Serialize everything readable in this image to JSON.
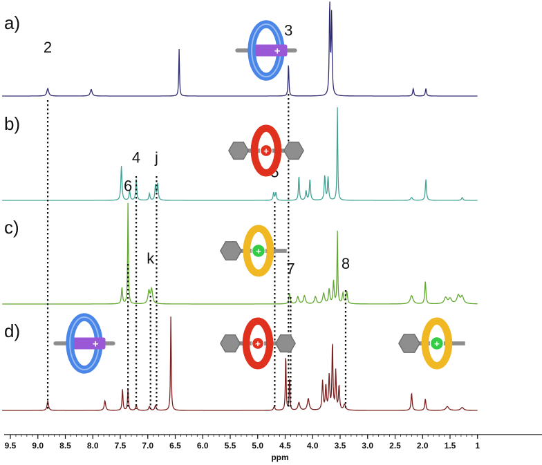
{
  "chart_data": {
    "type": "line",
    "xlabel": "ppm",
    "xlim": [
      9.65,
      1.0
    ],
    "x_ticks": [
      "9.5",
      "9.0",
      "8.5",
      "8.0",
      "7.5",
      "7.0",
      "6.5",
      "6.0",
      "5.5",
      "5.0",
      "4.5",
      "4.0",
      "3.5",
      "3.0",
      "2.5",
      "2.0",
      "1.5",
      "1"
    ],
    "grid": false,
    "legend": "none",
    "series": [
      {
        "panel_label": "a)",
        "color": "#2e2a72",
        "peaks": [
          {
            "ppm": 8.82,
            "height": 0.08,
            "width": 0.02
          },
          {
            "ppm": 8.03,
            "height": 0.07,
            "width": 0.02
          },
          {
            "ppm": 6.43,
            "height": 0.5,
            "width": 0.008
          },
          {
            "ppm": 4.44,
            "height": 0.35,
            "width": 0.009
          },
          {
            "ppm": 3.69,
            "height": 0.98,
            "width": 0.01
          },
          {
            "ppm": 3.655,
            "height": 0.85,
            "width": 0.01
          },
          {
            "ppm": 2.17,
            "height": 0.08,
            "width": 0.012
          },
          {
            "ppm": 1.94,
            "height": 0.08,
            "width": 0.012
          }
        ],
        "annotations": [
          {
            "label": "2",
            "ppm": 8.82,
            "height": 0.42
          },
          {
            "label": "3",
            "ppm": 4.44,
            "height": 0.6
          }
        ]
      },
      {
        "panel_label": "b)",
        "color": "#3fa394",
        "peaks": [
          {
            "ppm": 7.48,
            "height": 0.36,
            "width": 0.012
          },
          {
            "ppm": 7.33,
            "height": 0.1,
            "width": 0.012
          },
          {
            "ppm": 7.21,
            "height": 0.22,
            "width": 0.012
          },
          {
            "ppm": 6.97,
            "height": 0.07,
            "width": 0.012
          },
          {
            "ppm": 6.86,
            "height": 0.16,
            "width": 0.012
          },
          {
            "ppm": 6.82,
            "height": 0.17,
            "width": 0.012
          },
          {
            "ppm": 4.71,
            "height": 0.08,
            "width": 0.012
          },
          {
            "ppm": 4.67,
            "height": 0.08,
            "width": 0.012
          },
          {
            "ppm": 4.25,
            "height": 0.26,
            "width": 0.01
          },
          {
            "ppm": 4.12,
            "height": 0.1,
            "width": 0.012
          },
          {
            "ppm": 4.05,
            "height": 0.22,
            "width": 0.012
          },
          {
            "ppm": 3.78,
            "height": 0.26,
            "width": 0.012
          },
          {
            "ppm": 3.72,
            "height": 0.24,
            "width": 0.012
          },
          {
            "ppm": 3.55,
            "height": 0.98,
            "width": 0.008
          },
          {
            "ppm": 2.2,
            "height": 0.03,
            "width": 0.02
          },
          {
            "ppm": 1.94,
            "height": 0.22,
            "width": 0.012
          },
          {
            "ppm": 1.28,
            "height": 0.03,
            "width": 0.015
          }
        ],
        "annotations": [
          {
            "label": "4",
            "ppm": 7.21,
            "height": 0.35
          },
          {
            "label": "j",
            "ppm": 6.84,
            "height": 0.35
          },
          {
            "label": "5",
            "ppm": 4.69,
            "height": 0.2
          }
        ]
      },
      {
        "panel_label": "c)",
        "color": "#5fa82c",
        "peaks": [
          {
            "ppm": 7.47,
            "height": 0.16,
            "width": 0.012
          },
          {
            "ppm": 7.36,
            "height": 0.98,
            "width": 0.008
          },
          {
            "ppm": 6.98,
            "height": 0.12,
            "width": 0.02
          },
          {
            "ppm": 6.93,
            "height": 0.14,
            "width": 0.02
          },
          {
            "ppm": 4.42,
            "height": 0.1,
            "width": 0.015
          },
          {
            "ppm": 4.27,
            "height": 0.07,
            "width": 0.02
          },
          {
            "ppm": 4.15,
            "height": 0.08,
            "width": 0.02
          },
          {
            "ppm": 3.95,
            "height": 0.07,
            "width": 0.02
          },
          {
            "ppm": 3.8,
            "height": 0.1,
            "width": 0.02
          },
          {
            "ppm": 3.7,
            "height": 0.14,
            "width": 0.015
          },
          {
            "ppm": 3.62,
            "height": 0.22,
            "width": 0.012
          },
          {
            "ppm": 3.55,
            "height": 0.7,
            "width": 0.008
          },
          {
            "ppm": 3.45,
            "height": 0.1,
            "width": 0.015
          },
          {
            "ppm": 3.38,
            "height": 0.12,
            "width": 0.015
          },
          {
            "ppm": 2.2,
            "height": 0.08,
            "width": 0.03
          },
          {
            "ppm": 1.95,
            "height": 0.22,
            "width": 0.012
          },
          {
            "ppm": 1.58,
            "height": 0.06,
            "width": 0.03
          },
          {
            "ppm": 1.5,
            "height": 0.05,
            "width": 0.03
          },
          {
            "ppm": 1.35,
            "height": 0.08,
            "width": 0.03
          },
          {
            "ppm": 1.28,
            "height": 0.07,
            "width": 0.03
          }
        ],
        "annotations": [
          {
            "label": "6",
            "ppm": 7.36,
            "height": 1.05
          },
          {
            "label": "k",
            "ppm": 6.95,
            "height": 0.35
          },
          {
            "label": "7",
            "ppm": 4.4,
            "height": 0.25
          },
          {
            "label": "8",
            "ppm": 3.4,
            "height": 0.3
          }
        ]
      },
      {
        "panel_label": "d)",
        "color": "#7a1f1f",
        "peaks": [
          {
            "ppm": 8.82,
            "height": 0.1,
            "width": 0.015
          },
          {
            "ppm": 7.78,
            "height": 0.1,
            "width": 0.015
          },
          {
            "ppm": 7.46,
            "height": 0.22,
            "width": 0.01
          },
          {
            "ppm": 7.36,
            "height": 0.22,
            "width": 0.01
          },
          {
            "ppm": 7.21,
            "height": 0.05,
            "width": 0.015
          },
          {
            "ppm": 6.97,
            "height": 0.04,
            "width": 0.015
          },
          {
            "ppm": 6.86,
            "height": 0.05,
            "width": 0.015
          },
          {
            "ppm": 6.58,
            "height": 0.98,
            "width": 0.008
          },
          {
            "ppm": 4.7,
            "height": 0.04,
            "width": 0.015
          },
          {
            "ppm": 4.49,
            "height": 0.6,
            "width": 0.008
          },
          {
            "ppm": 4.42,
            "height": 0.35,
            "width": 0.008
          },
          {
            "ppm": 4.25,
            "height": 0.08,
            "width": 0.02
          },
          {
            "ppm": 4.08,
            "height": 0.12,
            "width": 0.02
          },
          {
            "ppm": 3.82,
            "height": 0.3,
            "width": 0.012
          },
          {
            "ppm": 3.76,
            "height": 0.25,
            "width": 0.012
          },
          {
            "ppm": 3.7,
            "height": 0.35,
            "width": 0.012
          },
          {
            "ppm": 3.64,
            "height": 0.7,
            "width": 0.01
          },
          {
            "ppm": 3.58,
            "height": 0.4,
            "width": 0.01
          },
          {
            "ppm": 3.52,
            "height": 0.25,
            "width": 0.012
          },
          {
            "ppm": 3.42,
            "height": 0.06,
            "width": 0.02
          },
          {
            "ppm": 2.2,
            "height": 0.18,
            "width": 0.012
          },
          {
            "ppm": 1.95,
            "height": 0.12,
            "width": 0.012
          },
          {
            "ppm": 1.55,
            "height": 0.04,
            "width": 0.03
          },
          {
            "ppm": 1.28,
            "height": 0.03,
            "width": 0.03
          }
        ],
        "annotations": []
      }
    ],
    "correlation_lines": [
      8.82,
      7.36,
      7.21,
      6.95,
      6.84,
      4.69,
      4.44,
      4.4,
      3.4
    ]
  },
  "icons": {
    "ring_blue": "#4a86e8",
    "ring_red": "#e0301e",
    "ring_gold": "#f0b823",
    "axle_purple": "#9a57d6",
    "stopper_gray": "#8e8e8e",
    "charge_green": "#33cc44"
  }
}
